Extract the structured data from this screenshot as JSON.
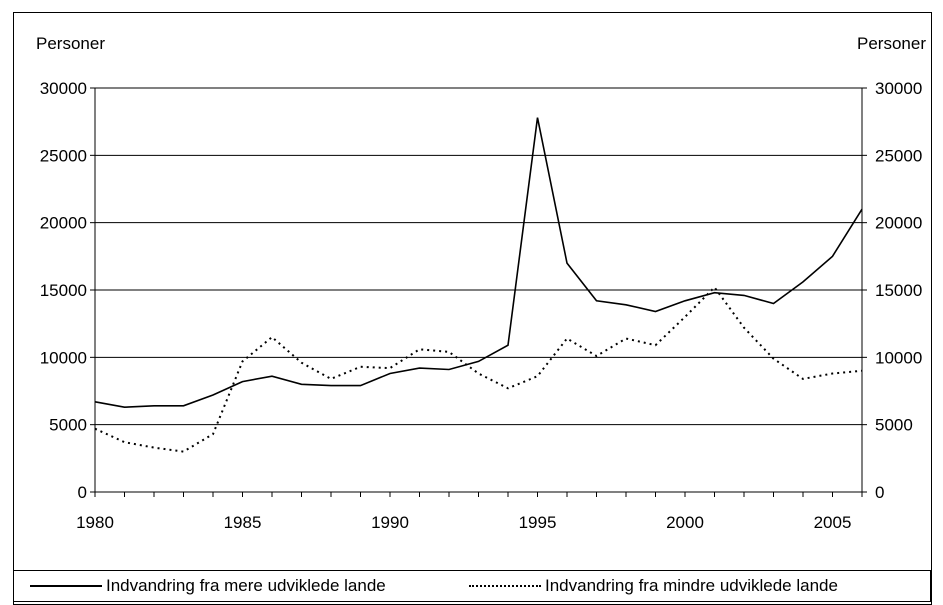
{
  "chart_data": {
    "type": "line",
    "title": "",
    "xlabel": "",
    "ylabel_left": "Personer",
    "ylabel_right": "Personer",
    "ylim": [
      0,
      30000
    ],
    "xlim": [
      1980,
      2006
    ],
    "yticks": [
      0,
      5000,
      10000,
      15000,
      20000,
      25000,
      30000
    ],
    "xticks": [
      1980,
      1985,
      1990,
      1995,
      2000,
      2005
    ],
    "grid": "horizontal",
    "legend_position": "bottom",
    "x": [
      1980,
      1981,
      1982,
      1983,
      1984,
      1985,
      1986,
      1987,
      1988,
      1989,
      1990,
      1991,
      1992,
      1993,
      1994,
      1995,
      1996,
      1997,
      1998,
      1999,
      2000,
      2001,
      2002,
      2003,
      2004,
      2005,
      2006
    ],
    "series": [
      {
        "name": "Indvandring fra mere udviklede lande",
        "style": "solid",
        "color": "#000000",
        "values": [
          6700,
          6300,
          6400,
          6400,
          7200,
          8200,
          8600,
          8000,
          7900,
          7900,
          8800,
          9200,
          9100,
          9700,
          10900,
          27800,
          17000,
          14200,
          13900,
          13400,
          14200,
          14800,
          14600,
          14000,
          15600,
          17500,
          21000
        ]
      },
      {
        "name": "Indvandring fra mindre udviklede lande",
        "style": "dotted",
        "color": "#000000",
        "values": [
          4700,
          3700,
          3300,
          3000,
          4300,
          9700,
          11500,
          9600,
          8400,
          9300,
          9200,
          10600,
          10400,
          8800,
          7700,
          8600,
          11400,
          10100,
          11400,
          10900,
          13000,
          15200,
          12200,
          9900,
          8400,
          8800,
          9000
        ]
      }
    ]
  }
}
